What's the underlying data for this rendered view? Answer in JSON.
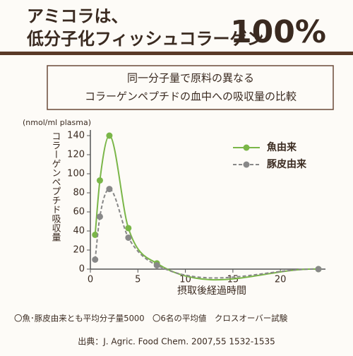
{
  "header": {
    "line1": "アミコラは、",
    "line2": "低分子化フィッシュコラーゲン",
    "percent": "100%"
  },
  "box": {
    "line1": "同一分子量で原料の異なる",
    "line2": "コラーゲンペプチドの血中への吸収量の比較"
  },
  "chart_data": {
    "type": "line",
    "unit": "(nmol/ml plasma)",
    "ylabel": "コラーゲンペプチド吸収量",
    "xlabel": "摂取後経過時間",
    "x": [
      0.5,
      1,
      2,
      4,
      7,
      24
    ],
    "series": [
      {
        "name": "魚由来",
        "color": "#7ab648",
        "values": [
          36,
          93,
          140,
          43,
          6,
          0
        ]
      },
      {
        "name": "豚皮由来",
        "color": "#888888",
        "values": [
          10,
          55,
          84,
          33,
          4,
          0
        ]
      }
    ],
    "xlim": [
      0,
      24
    ],
    "ylim": [
      0,
      140
    ],
    "xticks": [
      0,
      5,
      10,
      15,
      20
    ],
    "yticks": [
      0,
      20,
      40,
      60,
      80,
      100,
      120,
      140
    ],
    "legend": "upper right"
  },
  "footnotes": {
    "line1": "〇魚･豚皮由来とも平均分子量5000　〇6名の平均値　クロスオーバー試験",
    "line2": "出典：J. Agric. Food Chem. 2007,55 1532-1535"
  }
}
